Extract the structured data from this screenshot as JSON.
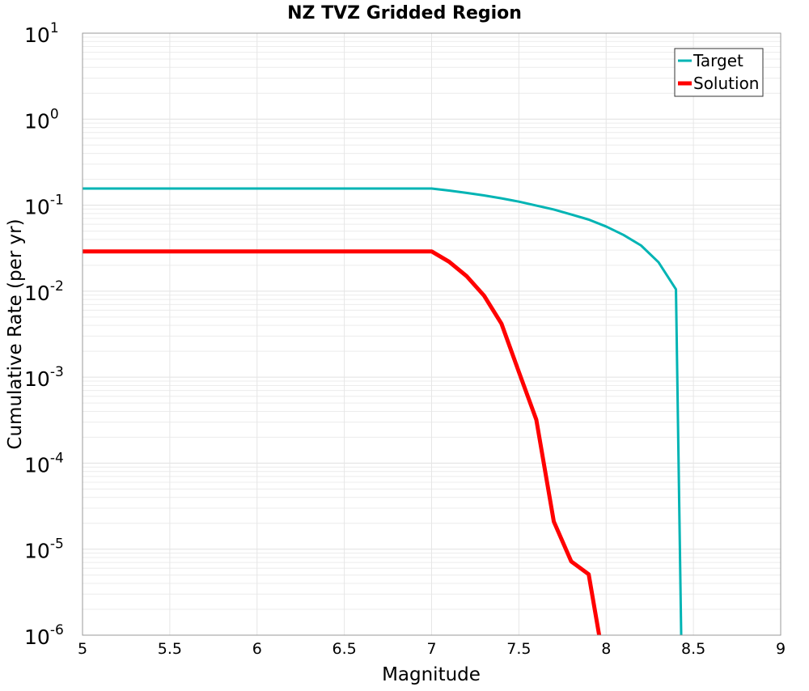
{
  "chart_data": {
    "type": "line",
    "title": "NZ TVZ Gridded Region",
    "xlabel": "Magnitude",
    "ylabel": "Cumulative Rate (per yr)",
    "xlim": [
      5,
      9
    ],
    "ylim": [
      1e-06,
      10
    ],
    "yscale": "log",
    "grid": true,
    "legend_placement": "top-right",
    "x_ticks": [
      "5",
      "5.5",
      "6",
      "6.5",
      "7",
      "7.5",
      "8",
      "8.5",
      "9"
    ],
    "y_ticks": [
      {
        "base": "10",
        "exp": "1"
      },
      {
        "base": "10",
        "exp": "0"
      },
      {
        "base": "10",
        "exp": "-1"
      },
      {
        "base": "10",
        "exp": "-2"
      },
      {
        "base": "10",
        "exp": "-3"
      },
      {
        "base": "10",
        "exp": "-4"
      },
      {
        "base": "10",
        "exp": "-5"
      },
      {
        "base": "10",
        "exp": "-6"
      }
    ],
    "series": [
      {
        "name": "Target",
        "color": "#00b4b4",
        "x": [
          5.0,
          7.0,
          7.1,
          7.2,
          7.3,
          7.4,
          7.5,
          7.6,
          7.7,
          7.8,
          7.9,
          8.0,
          8.1,
          8.2,
          8.3,
          8.4,
          8.43
        ],
        "y": [
          0.156,
          0.156,
          0.148,
          0.139,
          0.13,
          0.12,
          0.11,
          0.099,
          0.089,
          0.078,
          0.068,
          0.0565,
          0.045,
          0.034,
          0.0217,
          0.0105,
          1e-06
        ]
      },
      {
        "name": "Solution",
        "color": "#ff0000",
        "x": [
          5.0,
          7.0,
          7.1,
          7.2,
          7.3,
          7.4,
          7.5,
          7.6,
          7.7,
          7.8,
          7.9,
          7.96
        ],
        "y": [
          0.029,
          0.029,
          0.022,
          0.015,
          0.0089,
          0.0042,
          0.00115,
          0.00032,
          2.1e-05,
          7.2e-06,
          5.1e-06,
          1e-06
        ]
      }
    ]
  }
}
